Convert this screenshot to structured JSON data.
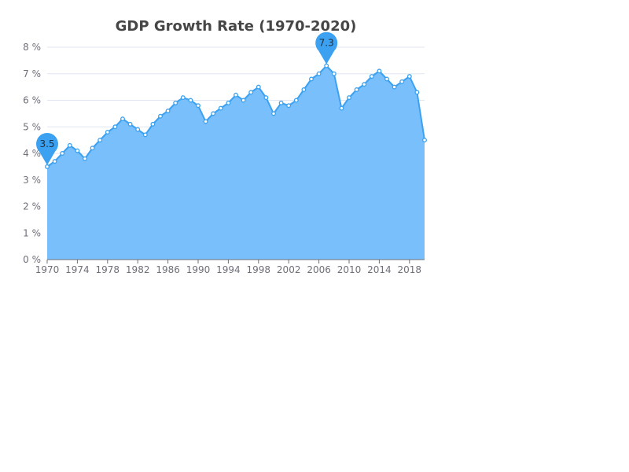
{
  "chart_data": {
    "type": "area",
    "title": "GDP Growth Rate (1970-2020)",
    "xlabel": "",
    "ylabel": "",
    "y_unit_suffix": " %",
    "ylim": [
      0,
      8
    ],
    "y_ticks": [
      0,
      1,
      2,
      3,
      4,
      5,
      6,
      7,
      8
    ],
    "x_tick_labels": [
      "1970",
      "1974",
      "1978",
      "1982",
      "1986",
      "1990",
      "1994",
      "1998",
      "2002",
      "2006",
      "2010",
      "2014",
      "2018"
    ],
    "grid": true,
    "legend": "none",
    "colors": {
      "line": "#3ba1f0",
      "area": "#79bffc",
      "grid": "#e0e6f1",
      "axis": "#6e7079",
      "pin": "#3ba1f0"
    },
    "x": [
      1970,
      1971,
      1972,
      1973,
      1974,
      1975,
      1976,
      1977,
      1978,
      1979,
      1980,
      1981,
      1982,
      1983,
      1984,
      1985,
      1986,
      1987,
      1988,
      1989,
      1990,
      1991,
      1992,
      1993,
      1994,
      1995,
      1996,
      1997,
      1998,
      1999,
      2000,
      2001,
      2002,
      2003,
      2004,
      2005,
      2006,
      2007,
      2008,
      2009,
      2010,
      2011,
      2012,
      2013,
      2014,
      2015,
      2016,
      2017,
      2018,
      2019,
      2020
    ],
    "values": [
      3.5,
      3.7,
      4.0,
      4.3,
      4.1,
      3.8,
      4.2,
      4.5,
      4.8,
      5.0,
      5.3,
      5.1,
      4.9,
      4.7,
      5.1,
      5.4,
      5.6,
      5.9,
      6.1,
      6.0,
      5.8,
      5.2,
      5.5,
      5.7,
      5.9,
      6.2,
      6.0,
      6.3,
      6.5,
      6.1,
      5.5,
      5.9,
      5.8,
      6.0,
      6.4,
      6.8,
      7.0,
      7.3,
      7.0,
      5.7,
      6.1,
      6.4,
      6.6,
      6.9,
      7.1,
      6.8,
      6.5,
      6.7,
      6.9,
      6.3,
      4.5
    ],
    "mark_points": [
      {
        "type": "min",
        "x": 1970,
        "value": 3.5,
        "label": "3.5"
      },
      {
        "type": "max",
        "x": 2007,
        "value": 7.3,
        "label": "7.3"
      }
    ]
  }
}
